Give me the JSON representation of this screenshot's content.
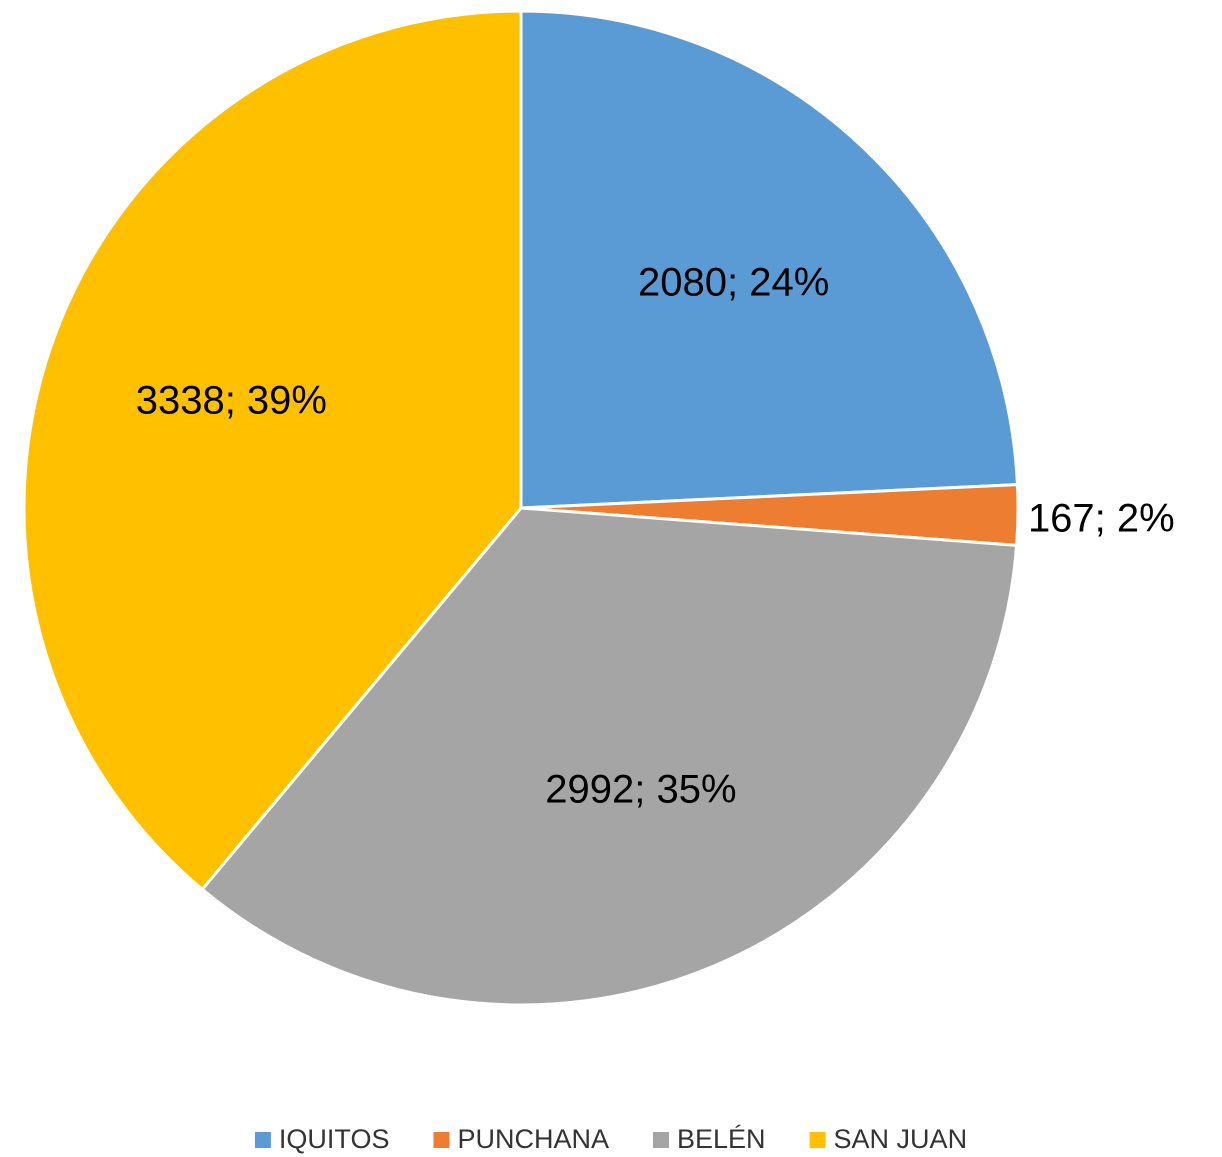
{
  "chart_data": {
    "type": "pie",
    "categories": [
      "IQUITOS",
      "PUNCHANA",
      "BELÉN",
      "SAN JUAN"
    ],
    "values": [
      2080,
      167,
      2992,
      3338
    ],
    "value_labels": [
      "2080; 24%",
      "167; 2%",
      "2992; 35%",
      "3338; 39%"
    ],
    "colors": [
      "#5b9bd5",
      "#ed7d31",
      "#a5a5a5",
      "#ffc000"
    ],
    "legend": "bottom"
  }
}
